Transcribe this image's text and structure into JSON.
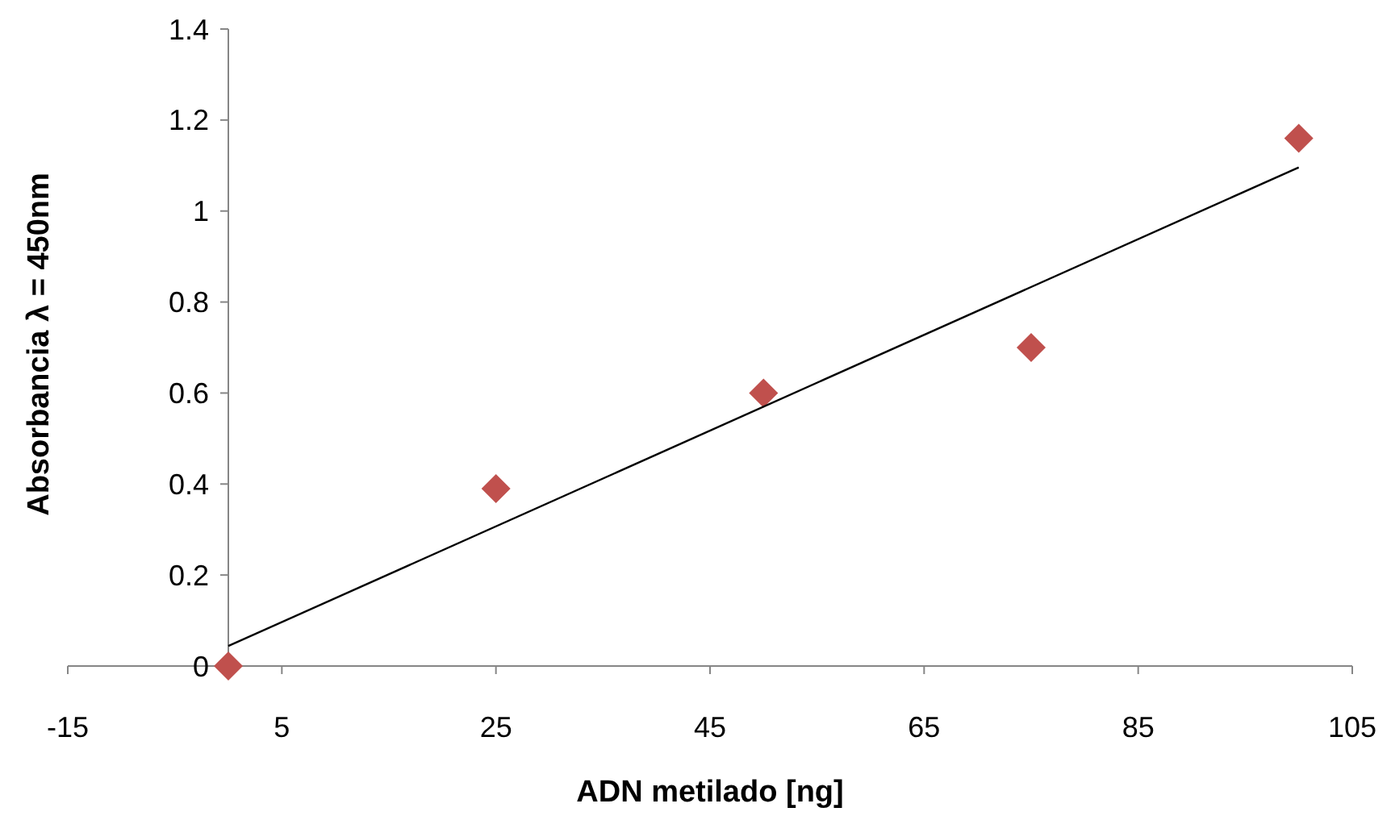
{
  "chart_data": {
    "type": "scatter",
    "xlabel": "ADN metilado [ng]",
    "ylabel": "Absorbancia λ = 450nm",
    "xlim": [
      -15,
      105
    ],
    "xticks": [
      -15,
      5,
      25,
      45,
      65,
      85,
      105
    ],
    "ylim": [
      0,
      1.4
    ],
    "yticks": [
      0,
      0.2,
      0.4,
      0.6,
      0.8,
      1,
      1.2,
      1.4
    ],
    "grid": false,
    "series": [
      {
        "type": "scatter",
        "color": "#c0504d",
        "marker": "diamond",
        "x": [
          0,
          25,
          50,
          75,
          100
        ],
        "values": [
          0,
          0.39,
          0.6,
          0.7,
          1.16
        ]
      },
      {
        "type": "line",
        "color": "#000000",
        "marker": "none",
        "line_style": "solid",
        "x": [
          0,
          100
        ],
        "values": [
          0.044,
          1.096
        ]
      }
    ]
  }
}
